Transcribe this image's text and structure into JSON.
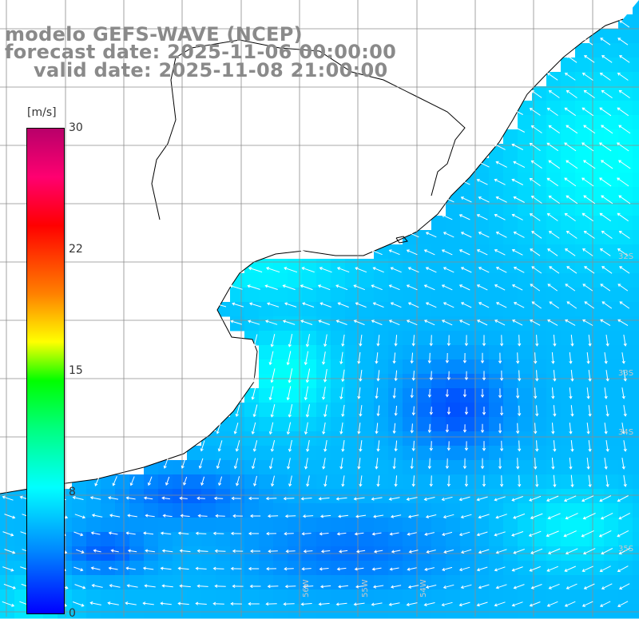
{
  "title": {
    "line1": "modelo GEFS-WAVE (NCEP)",
    "line2": "forecast date: 2025-11-06 00:00:00",
    "line3": "valid date: 2025-11-08 21:00:00"
  },
  "colorbar": {
    "unit": "[m/s]",
    "ticks": [
      "30",
      "22",
      "15",
      "8",
      "0"
    ],
    "tick_values": [
      30,
      22,
      15,
      8,
      0
    ],
    "min": 0,
    "max": 30,
    "colors": [
      "#0000ff",
      "#0088ff",
      "#00ffff",
      "#00ff80",
      "#00ff00",
      "#ffff00",
      "#ff8000",
      "#ff0000",
      "#ff0070",
      "#b8006a"
    ]
  },
  "map": {
    "variable": "wind speed and direction",
    "land_color": "#ffffff",
    "coastline_color": "#000000",
    "grid_color": "#8c8c8c",
    "lon_labels": [
      "56W",
      "55W",
      "54W"
    ],
    "lat_labels": [
      "32S",
      "33S",
      "34S",
      "35S"
    ],
    "wind_range_shown": [
      0,
      9
    ]
  }
}
